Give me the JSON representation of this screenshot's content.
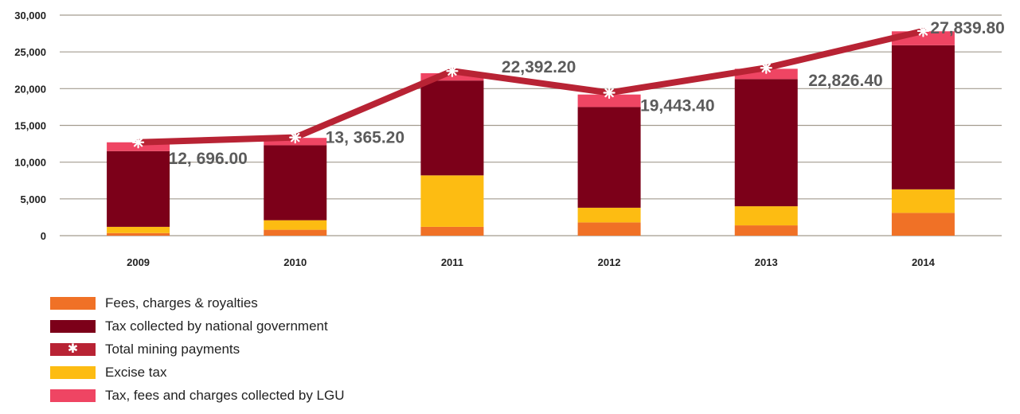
{
  "chart_data": {
    "type": "bar",
    "stacked": true,
    "categories": [
      "2009",
      "2010",
      "2011",
      "2012",
      "2013",
      "2014"
    ],
    "ylim": [
      0,
      30000
    ],
    "yticks": [
      0,
      5000,
      10000,
      15000,
      20000,
      25000,
      30000
    ],
    "ytick_labels": [
      "0",
      "5,000",
      "10,000",
      "15,000",
      "20,000",
      "25,000",
      "30,000"
    ],
    "grid": true,
    "legend_position": "bottom-left",
    "series": [
      {
        "name": "Fees, charges & royalties",
        "color": "#f07126",
        "values": [
          350,
          800,
          1200,
          1800,
          1400,
          3100
        ]
      },
      {
        "name": "Excise tax",
        "color": "#fdbc12",
        "values": [
          850,
          1300,
          7000,
          2000,
          2600,
          3200
        ]
      },
      {
        "name": "Tax collected by national government",
        "color": "#7c0019",
        "values": [
          10300,
          10200,
          12900,
          13700,
          17300,
          19600
        ]
      },
      {
        "name": "Tax, fees and charges collected by LGU",
        "color": "#ef4563",
        "values": [
          1200,
          1000,
          1000,
          1700,
          1400,
          1900
        ]
      }
    ],
    "line_series": {
      "name": "Total mining payments",
      "color": "#b82334",
      "values": [
        12696.0,
        13365.2,
        22392.2,
        19443.4,
        22826.4,
        27839.8
      ],
      "labels": [
        "12, 696.00",
        "13, 365.20",
        "22,392.20",
        "19,443.40",
        "22,826.40",
        "27,839.80"
      ]
    },
    "legend_order": [
      "Fees, charges & royalties",
      "Tax collected by national government",
      "Total mining payments",
      "Excise tax",
      "Tax, fees and charges collected by LGU"
    ]
  }
}
